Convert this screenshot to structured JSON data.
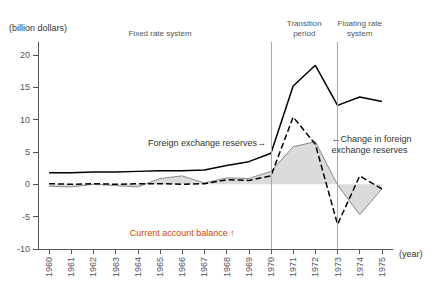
{
  "chart_data": {
    "type": "line",
    "x_label": "(year)",
    "y_label": "(billion dollars)",
    "x": [
      1960,
      1961,
      1962,
      1963,
      1964,
      1965,
      1966,
      1967,
      1968,
      1969,
      1970,
      1971,
      1972,
      1973,
      1974,
      1975
    ],
    "series": [
      {
        "color": "#000000",
        "line_style": "solid",
        "values": [
          1.8,
          1.8,
          1.9,
          1.9,
          2.0,
          2.1,
          2.1,
          2.2,
          2.9,
          3.5,
          4.8,
          15.2,
          18.4,
          12.2,
          13.5,
          12.8
        ]
      },
      {
        "color": "#000000",
        "line_style": "dashed",
        "values": [
          0.1,
          0.0,
          0.1,
          0.0,
          0.1,
          0.1,
          0.0,
          0.1,
          0.7,
          0.6,
          1.3,
          10.4,
          6.2,
          -6.2,
          1.3,
          -0.7
        ]
      },
      {
        "type": "area",
        "color": "#888888",
        "line_style": "solid",
        "values": [
          -0.3,
          -0.4,
          0.0,
          -0.2,
          -0.4,
          0.9,
          1.3,
          0.2,
          1.0,
          0.9,
          2.0,
          5.8,
          6.6,
          -0.1,
          -4.7,
          -0.7
        ]
      }
    ],
    "xlim": [
      1959.5,
      1975.5
    ],
    "xticks": [
      1960,
      1961,
      1962,
      1963,
      1964,
      1965,
      1966,
      1967,
      1968,
      1969,
      1970,
      1971,
      1972,
      1973,
      1974,
      1975
    ],
    "ylim": [
      -10,
      22
    ],
    "yticks": [
      -10,
      -5,
      0,
      5,
      10,
      15,
      20
    ],
    "grid": false,
    "periods": [
      {
        "label": "Fixed rate system",
        "start": 1960,
        "end": 1970
      },
      {
        "label": "Transition\nperiod",
        "start": 1970,
        "end": 1973
      },
      {
        "label": "Floating rate\nsystem",
        "start": 1973,
        "end": 1975
      }
    ],
    "annotations": [
      {
        "text": "Foreign exchange reserves→",
        "x": 1970,
        "y": 4.8,
        "color": "#333333"
      },
      {
        "text": "←Change in foreign\nexchange reserves",
        "x": 1972.5,
        "y": 6.2,
        "color": "#333333"
      },
      {
        "text": "Current account balance ↑",
        "x": 1966,
        "y": -7.5,
        "color": "#cc4400"
      }
    ]
  }
}
